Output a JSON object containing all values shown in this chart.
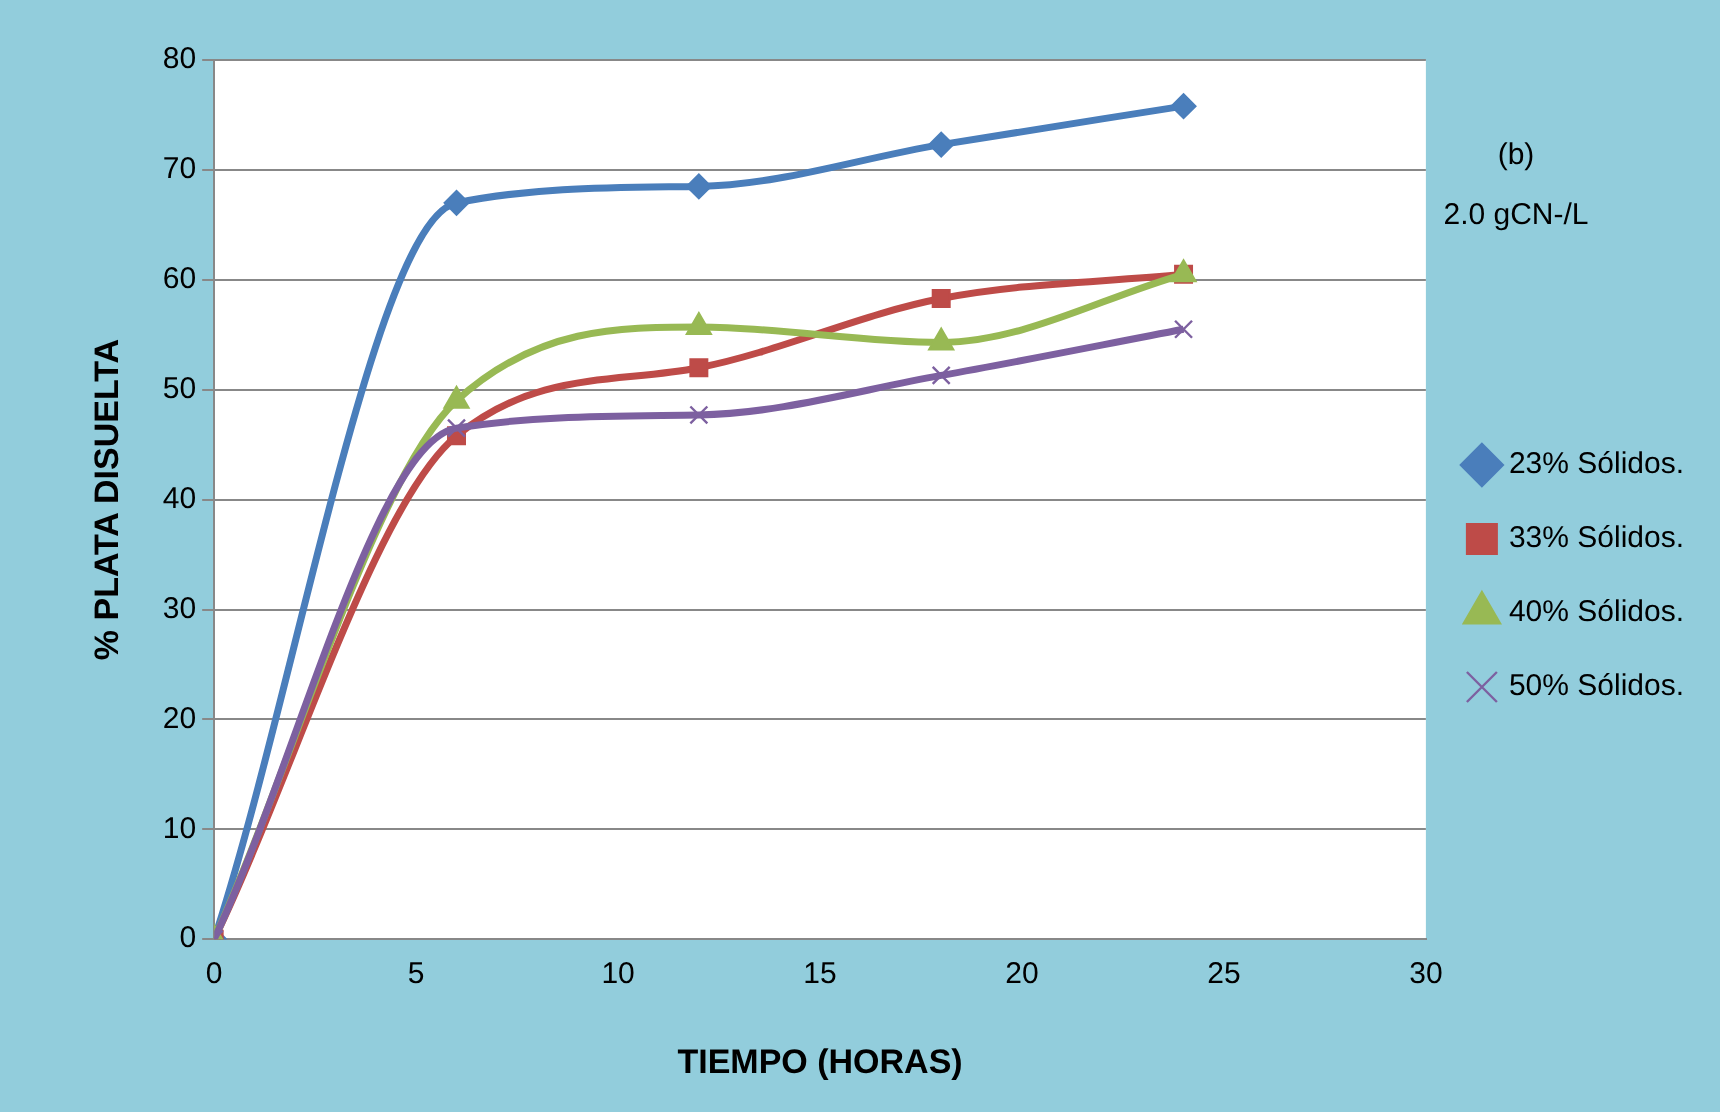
{
  "chart_data": {
    "type": "line",
    "xlabel": "TIEMPO (HORAS)",
    "ylabel": "% PLATA DISUELTA",
    "annotations": [
      "(b)",
      "2.0 gCN-/L"
    ],
    "x": [
      0,
      6,
      12,
      18,
      24
    ],
    "series": [
      {
        "name": "23% Sólidos.",
        "color": "#4a7ebb",
        "marker": "diamond",
        "values": [
          0,
          67,
          68.5,
          72.3,
          75.8
        ]
      },
      {
        "name": "33% Sólidos.",
        "color": "#be4b48",
        "marker": "square",
        "values": [
          0,
          45.8,
          52,
          58.3,
          60.5
        ]
      },
      {
        "name": "40% Sólidos.",
        "color": "#98b954",
        "marker": "triangle",
        "values": [
          0,
          49,
          55.7,
          54.3,
          60.5
        ]
      },
      {
        "name": "50% Sólidos.",
        "color": "#7d60a0",
        "marker": "cross",
        "values": [
          0,
          46.5,
          47.7,
          51.3,
          55.5
        ]
      }
    ],
    "xlim": [
      0,
      30
    ],
    "xticks": [
      0,
      5,
      10,
      15,
      20,
      25,
      30
    ],
    "ylim": [
      0,
      80
    ],
    "yticks": [
      0,
      10,
      20,
      30,
      40,
      50,
      60,
      70,
      80
    ],
    "grid": "y",
    "legend": "right",
    "line_style": "solid"
  }
}
